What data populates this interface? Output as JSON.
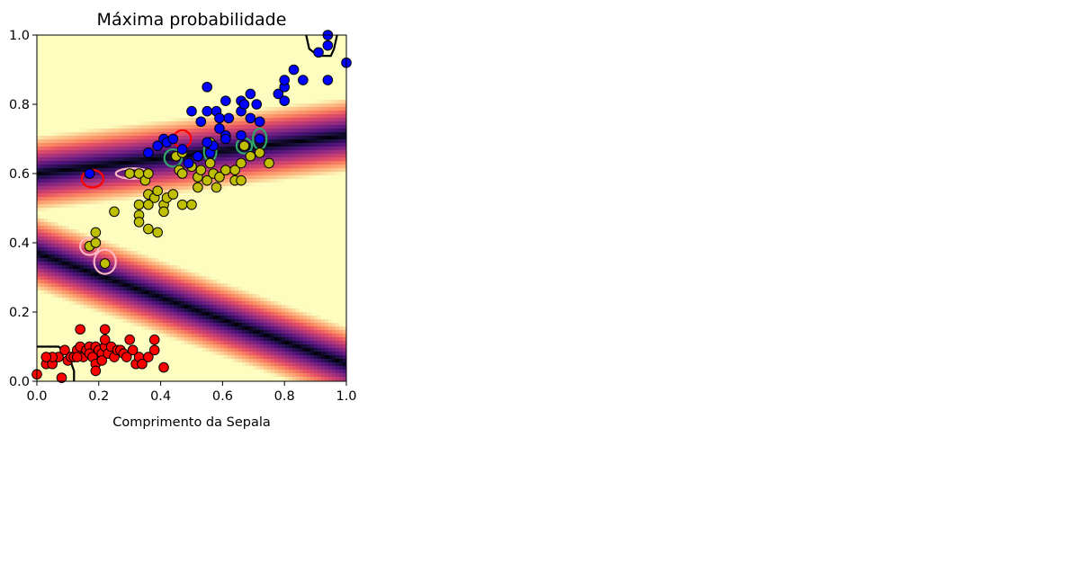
{
  "chart_data": {
    "type": "scatter",
    "title": "Máxima probabilidade",
    "xlabel": "Comprimento da Sepala",
    "ylabel": "",
    "xlim": [
      0.0,
      1.0
    ],
    "ylim": [
      0.0,
      1.0
    ],
    "xticks": [
      "0.0",
      "0.2",
      "0.4",
      "0.6",
      "0.8",
      "1.0"
    ],
    "yticks": [
      "0.0",
      "0.2",
      "0.4",
      "0.6",
      "0.8",
      "1.0"
    ],
    "grid": false,
    "legend": "none",
    "background": {
      "kind": "heatmap",
      "colormap": "magma",
      "boundaries": [
        {
          "x": [
            0.0,
            1.0
          ],
          "y": [
            0.6,
            0.71
          ]
        },
        {
          "x": [
            0.0,
            1.0
          ],
          "y": [
            0.37,
            0.05
          ]
        }
      ]
    },
    "series": [
      {
        "color": "#ff0000",
        "points": [
          [
            0.0,
            0.02
          ],
          [
            0.03,
            0.05
          ],
          [
            0.05,
            0.05
          ],
          [
            0.07,
            0.07
          ],
          [
            0.09,
            0.09
          ],
          [
            0.1,
            0.06
          ],
          [
            0.11,
            0.07
          ],
          [
            0.12,
            0.07
          ],
          [
            0.13,
            0.09
          ],
          [
            0.14,
            0.1
          ],
          [
            0.14,
            0.15
          ],
          [
            0.15,
            0.07
          ],
          [
            0.16,
            0.09
          ],
          [
            0.17,
            0.1
          ],
          [
            0.17,
            0.08
          ],
          [
            0.18,
            0.07
          ],
          [
            0.19,
            0.1
          ],
          [
            0.19,
            0.05
          ],
          [
            0.19,
            0.03
          ],
          [
            0.2,
            0.09
          ],
          [
            0.21,
            0.08
          ],
          [
            0.21,
            0.06
          ],
          [
            0.22,
            0.1
          ],
          [
            0.22,
            0.12
          ],
          [
            0.22,
            0.15
          ],
          [
            0.23,
            0.08
          ],
          [
            0.24,
            0.1
          ],
          [
            0.25,
            0.07
          ],
          [
            0.26,
            0.09
          ],
          [
            0.27,
            0.09
          ],
          [
            0.28,
            0.08
          ],
          [
            0.29,
            0.07
          ],
          [
            0.3,
            0.12
          ],
          [
            0.31,
            0.09
          ],
          [
            0.32,
            0.05
          ],
          [
            0.33,
            0.07
          ],
          [
            0.34,
            0.05
          ],
          [
            0.36,
            0.07
          ],
          [
            0.38,
            0.12
          ],
          [
            0.38,
            0.09
          ],
          [
            0.41,
            0.04
          ],
          [
            0.08,
            0.01
          ],
          [
            0.05,
            0.07
          ],
          [
            0.03,
            0.07
          ],
          [
            0.13,
            0.07
          ]
        ]
      },
      {
        "color": "#bfbf00",
        "points": [
          [
            0.17,
            0.39
          ],
          [
            0.19,
            0.4
          ],
          [
            0.19,
            0.43
          ],
          [
            0.22,
            0.34
          ],
          [
            0.25,
            0.49
          ],
          [
            0.3,
            0.6
          ],
          [
            0.33,
            0.6
          ],
          [
            0.35,
            0.58
          ],
          [
            0.36,
            0.54
          ],
          [
            0.36,
            0.6
          ],
          [
            0.38,
            0.53
          ],
          [
            0.39,
            0.55
          ],
          [
            0.39,
            0.43
          ],
          [
            0.33,
            0.51
          ],
          [
            0.33,
            0.48
          ],
          [
            0.33,
            0.46
          ],
          [
            0.36,
            0.51
          ],
          [
            0.36,
            0.44
          ],
          [
            0.41,
            0.51
          ],
          [
            0.41,
            0.49
          ],
          [
            0.42,
            0.53
          ],
          [
            0.44,
            0.54
          ],
          [
            0.45,
            0.65
          ],
          [
            0.46,
            0.61
          ],
          [
            0.47,
            0.6
          ],
          [
            0.47,
            0.51
          ],
          [
            0.5,
            0.62
          ],
          [
            0.5,
            0.51
          ],
          [
            0.52,
            0.56
          ],
          [
            0.52,
            0.59
          ],
          [
            0.53,
            0.61
          ],
          [
            0.55,
            0.58
          ],
          [
            0.56,
            0.63
          ],
          [
            0.56,
            0.69
          ],
          [
            0.57,
            0.6
          ],
          [
            0.58,
            0.56
          ],
          [
            0.59,
            0.59
          ],
          [
            0.61,
            0.61
          ],
          [
            0.64,
            0.61
          ],
          [
            0.64,
            0.58
          ],
          [
            0.66,
            0.63
          ],
          [
            0.66,
            0.58
          ],
          [
            0.69,
            0.65
          ],
          [
            0.72,
            0.66
          ],
          [
            0.75,
            0.63
          ],
          [
            0.67,
            0.68
          ],
          [
            0.47,
            0.66
          ]
        ]
      },
      {
        "color": "#0000ff",
        "points": [
          [
            0.17,
            0.6
          ],
          [
            0.36,
            0.66
          ],
          [
            0.39,
            0.68
          ],
          [
            0.41,
            0.7
          ],
          [
            0.42,
            0.69
          ],
          [
            0.44,
            0.7
          ],
          [
            0.47,
            0.67
          ],
          [
            0.5,
            0.78
          ],
          [
            0.53,
            0.75
          ],
          [
            0.55,
            0.85
          ],
          [
            0.55,
            0.78
          ],
          [
            0.56,
            0.66
          ],
          [
            0.57,
            0.68
          ],
          [
            0.58,
            0.78
          ],
          [
            0.59,
            0.73
          ],
          [
            0.59,
            0.76
          ],
          [
            0.61,
            0.71
          ],
          [
            0.61,
            0.7
          ],
          [
            0.61,
            0.81
          ],
          [
            0.62,
            0.76
          ],
          [
            0.66,
            0.81
          ],
          [
            0.66,
            0.78
          ],
          [
            0.66,
            0.71
          ],
          [
            0.67,
            0.8
          ],
          [
            0.69,
            0.83
          ],
          [
            0.69,
            0.76
          ],
          [
            0.71,
            0.8
          ],
          [
            0.72,
            0.75
          ],
          [
            0.72,
            0.7
          ],
          [
            0.78,
            0.83
          ],
          [
            0.8,
            0.81
          ],
          [
            0.8,
            0.85
          ],
          [
            0.8,
            0.87
          ],
          [
            0.83,
            0.9
          ],
          [
            0.86,
            0.87
          ],
          [
            0.91,
            0.95
          ],
          [
            0.94,
            0.97
          ],
          [
            0.94,
            0.87
          ],
          [
            1.0,
            0.92
          ],
          [
            0.94,
            1.0
          ],
          [
            0.55,
            0.69
          ],
          [
            0.52,
            0.65
          ],
          [
            0.49,
            0.63
          ]
        ]
      }
    ],
    "annotations": [
      {
        "color": "#ff0000",
        "kind": "circle",
        "center": [
          0.18,
          0.585
        ],
        "r": [
          0.035,
          0.025
        ]
      },
      {
        "color": "#ff0000",
        "kind": "circle",
        "center": [
          0.47,
          0.7
        ],
        "r": [
          0.028,
          0.025
        ]
      },
      {
        "color": "#ffb6c1",
        "kind": "circle",
        "center": [
          0.31,
          0.6
        ],
        "r": [
          0.055,
          0.015
        ]
      },
      {
        "color": "#ffb6c1",
        "kind": "circle",
        "center": [
          0.17,
          0.39
        ],
        "r": [
          0.03,
          0.025
        ]
      },
      {
        "color": "#ffb6c1",
        "kind": "circle",
        "center": [
          0.22,
          0.345
        ],
        "r": [
          0.035,
          0.035
        ]
      },
      {
        "color": "#2fa86a",
        "kind": "circle",
        "center": [
          0.44,
          0.645
        ],
        "r": [
          0.028,
          0.025
        ]
      },
      {
        "color": "#2fa86a",
        "kind": "circle",
        "center": [
          0.56,
          0.665
        ],
        "r": [
          0.02,
          0.03
        ]
      },
      {
        "color": "#2fa86a",
        "kind": "circle",
        "center": [
          0.67,
          0.68
        ],
        "r": [
          0.025,
          0.022
        ]
      },
      {
        "color": "#2fa86a",
        "kind": "circle",
        "center": [
          0.72,
          0.7
        ],
        "r": [
          0.022,
          0.03
        ]
      },
      {
        "color": "#000000",
        "kind": "path",
        "points": [
          [
            0.0,
            0.1
          ],
          [
            0.07,
            0.1
          ],
          [
            0.1,
            0.08
          ],
          [
            0.12,
            0.03
          ],
          [
            0.12,
            0.0
          ]
        ]
      },
      {
        "color": "#000000",
        "kind": "path",
        "points": [
          [
            0.87,
            1.0
          ],
          [
            0.88,
            0.96
          ],
          [
            0.91,
            0.94
          ],
          [
            0.95,
            0.94
          ],
          [
            0.96,
            0.96
          ],
          [
            0.97,
            1.0
          ]
        ]
      }
    ]
  }
}
